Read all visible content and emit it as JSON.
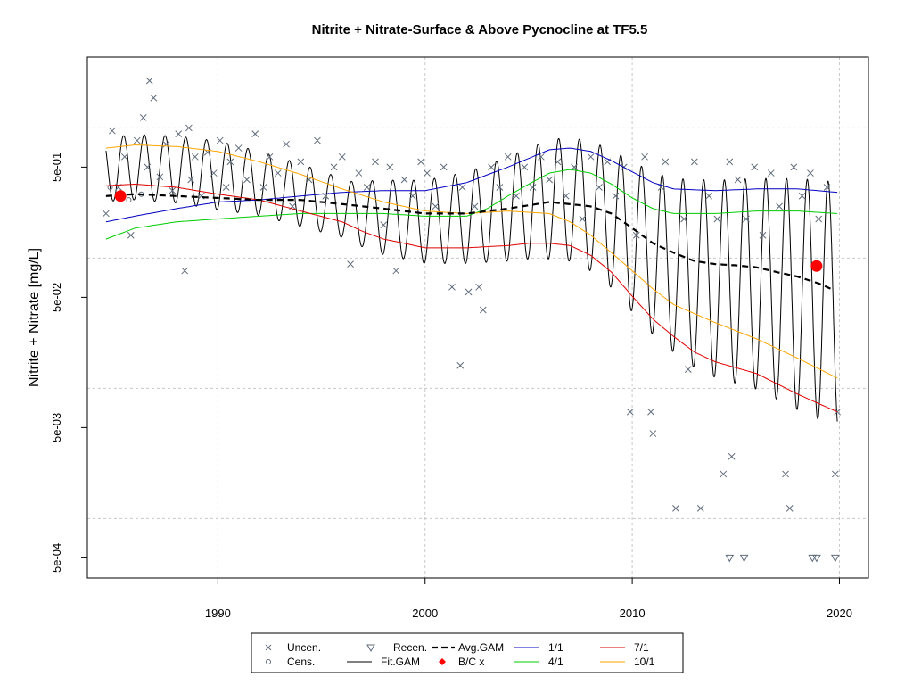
{
  "chart_data": {
    "type": "scatter",
    "title": "Nitrite + Nitrate-Surface & Above Pycnocline at TF5.5",
    "xlabel": "",
    "ylabel": "Nitrite + Nitrate [mg/L]",
    "y_scale": "log",
    "xlim": [
      1983.7,
      2021.4
    ],
    "ylim": [
      0.00035,
      3.5
    ],
    "x_ticks": [
      1990,
      2000,
      2010,
      2020
    ],
    "x_tick_labels": [
      "1990",
      "2000",
      "2010",
      "2020"
    ],
    "y_ticks": [
      0.0005,
      0.005,
      0.05,
      0.5
    ],
    "y_tick_labels": [
      "5e-04",
      "5e-03",
      "5e-02",
      "5e-01"
    ],
    "grid": true,
    "legend_placement": "bottom",
    "legend": [
      {
        "label": "Uncen.",
        "symbol": "x",
        "color": "#5f6b7a"
      },
      {
        "label": "Cens.",
        "symbol": "circle",
        "color": "#5f6b7a"
      },
      {
        "label": "Recen.",
        "symbol": "triangle-down",
        "color": "#5f6b7a"
      },
      {
        "label": "Fit.GAM",
        "symbol": "line",
        "color": "#000000"
      },
      {
        "label": "Avg.GAM",
        "symbol": "dashed-line",
        "color": "#000000"
      },
      {
        "label": "B/C x",
        "symbol": "diamond",
        "color": "#ff0000"
      },
      {
        "label": "1/1",
        "symbol": "line",
        "color": "#0000c0"
      },
      {
        "label": "4/1",
        "symbol": "line",
        "color": "#00cc00"
      },
      {
        "label": "7/1",
        "symbol": "line",
        "color": "#e00000"
      },
      {
        "label": "10/1",
        "symbol": "line",
        "color": "#ffa500"
      }
    ],
    "colors": {
      "points": "#5f6b7a",
      "fit_gam": "#000000",
      "avg_gam": "#000000",
      "baseline_marker": "#ff0000",
      "jan1": "#0000c0",
      "apr1": "#00cc00",
      "jul1": "#e00000",
      "oct1": "#ffa500",
      "grid": "#c8c8c8"
    },
    "series": [
      {
        "name": "Uncen.",
        "type": "scatter",
        "x": [
          1984.6,
          1984.9,
          1985.2,
          1985.5,
          1985.8,
          1986.1,
          1986.4,
          1986.6,
          1986.7,
          1986.9,
          1987.2,
          1987.5,
          1987.8,
          1988.1,
          1988.4,
          1988.6,
          1988.7,
          1988.9,
          1989.2,
          1989.5,
          1989.8,
          1990.1,
          1990.4,
          1990.6,
          1991.0,
          1991.4,
          1991.8,
          1992.2,
          1992.5,
          1992.9,
          1993.3,
          1993.6,
          1994.0,
          1994.4,
          1994.8,
          1995.2,
          1995.6,
          1996.0,
          1996.4,
          1996.8,
          1997.2,
          1997.6,
          1998.0,
          1998.3,
          1998.6,
          1999.0,
          1999.4,
          1999.8,
          2000.1,
          2000.5,
          2000.9,
          2001.3,
          2001.7,
          2001.8,
          2002.1,
          2002.4,
          2002.6,
          2002.8,
          2003.2,
          2003.6,
          2004.0,
          2004.4,
          2004.8,
          2005.2,
          2005.6,
          2006.0,
          2006.4,
          2006.8,
          2007.2,
          2007.6,
          2008.0,
          2008.4,
          2008.8,
          2009.2,
          2009.6,
          2009.9,
          2010.2,
          2010.6,
          2010.9,
          2011.0,
          2011.4,
          2011.6,
          2012.1,
          2012.5,
          2012.7,
          2013.0,
          2013.3,
          2013.7,
          2014.1,
          2014.4,
          2014.7,
          2014.8,
          2015.1,
          2015.5,
          2015.9,
          2016.3,
          2016.7,
          2017.1,
          2017.4,
          2017.6,
          2017.8,
          2018.2,
          2018.6,
          2019.0,
          2019.4,
          2019.8,
          2019.9
        ],
        "y": [
          0.22,
          0.95,
          0.35,
          0.6,
          0.15,
          0.8,
          1.2,
          0.5,
          2.3,
          1.7,
          0.42,
          0.75,
          0.33,
          0.9,
          0.08,
          1.0,
          0.4,
          0.6,
          0.3,
          0.65,
          0.45,
          0.8,
          0.35,
          0.55,
          0.7,
          0.4,
          0.9,
          0.35,
          0.6,
          0.45,
          0.75,
          0.25,
          0.55,
          0.4,
          0.8,
          0.3,
          0.5,
          0.6,
          0.09,
          0.45,
          0.35,
          0.55,
          0.18,
          0.5,
          0.08,
          0.4,
          0.3,
          0.55,
          0.45,
          0.25,
          0.5,
          0.06,
          0.015,
          0.35,
          0.055,
          0.25,
          0.06,
          0.04,
          0.5,
          0.35,
          0.6,
          0.3,
          0.5,
          0.35,
          0.6,
          0.4,
          0.55,
          0.3,
          0.5,
          0.2,
          0.6,
          0.35,
          0.55,
          0.3,
          0.5,
          0.0066,
          0.15,
          0.6,
          0.0066,
          0.0045,
          0.35,
          0.55,
          0.0012,
          0.2,
          0.014,
          0.55,
          0.0012,
          0.3,
          0.2,
          0.0022,
          0.55,
          0.003,
          0.4,
          0.2,
          0.5,
          0.15,
          0.45,
          0.25,
          0.0022,
          0.0012,
          0.5,
          0.3,
          0.45,
          0.2,
          0.35,
          0.0022,
          0.0066
        ]
      },
      {
        "name": "Cens.",
        "type": "scatter",
        "x": [
          1984.8,
          1985.7,
          1986.3
        ],
        "y": [
          0.35,
          0.28,
          0.31
        ]
      },
      {
        "name": "Recen.",
        "type": "scatter",
        "x": [
          2014.7,
          2015.4,
          2018.7,
          2018.9,
          2019.8
        ],
        "y": [
          0.0005,
          0.0005,
          0.0005,
          0.0005,
          0.0005
        ]
      },
      {
        "name": "Avg.GAM",
        "type": "line",
        "x": [
          1984.6,
          1986,
          1988,
          1990,
          1992,
          1994,
          1996,
          1998,
          2000,
          2002,
          2004,
          2006,
          2008,
          2009,
          2010,
          2011,
          2012,
          2013,
          2014,
          2015,
          2016,
          2017,
          2018,
          2019,
          2019.6
        ],
        "y": [
          0.3,
          0.31,
          0.3,
          0.29,
          0.28,
          0.28,
          0.26,
          0.24,
          0.22,
          0.22,
          0.24,
          0.27,
          0.25,
          0.22,
          0.17,
          0.13,
          0.11,
          0.095,
          0.09,
          0.088,
          0.085,
          0.078,
          0.072,
          0.064,
          0.058
        ]
      },
      {
        "name": "1/1",
        "type": "line",
        "x": [
          1984.6,
          1986,
          1988,
          1990,
          1992,
          1994,
          1996,
          1998,
          2000,
          2002,
          2004,
          2006,
          2007,
          2008,
          2009,
          2010,
          2011,
          2012,
          2014,
          2016,
          2018,
          2019.9
        ],
        "y": [
          0.19,
          0.21,
          0.24,
          0.27,
          0.28,
          0.3,
          0.32,
          0.33,
          0.33,
          0.38,
          0.5,
          0.68,
          0.7,
          0.66,
          0.56,
          0.46,
          0.38,
          0.34,
          0.33,
          0.34,
          0.34,
          0.32
        ]
      },
      {
        "name": "4/1",
        "type": "line",
        "x": [
          1984.6,
          1986,
          1988,
          1990,
          1992,
          1994,
          1996,
          1998,
          2000,
          2002,
          2003,
          2004,
          2005,
          2006,
          2007,
          2008,
          2009,
          2010,
          2011,
          2012,
          2014,
          2016,
          2018,
          2019.9
        ],
        "y": [
          0.14,
          0.17,
          0.19,
          0.2,
          0.21,
          0.22,
          0.22,
          0.22,
          0.21,
          0.21,
          0.24,
          0.3,
          0.37,
          0.45,
          0.48,
          0.45,
          0.37,
          0.29,
          0.24,
          0.22,
          0.22,
          0.23,
          0.23,
          0.22
        ]
      },
      {
        "name": "7/1",
        "type": "line",
        "x": [
          1984.6,
          1986,
          1988,
          1990,
          1992,
          1994,
          1996,
          1997,
          1998,
          1999,
          2000,
          2002,
          2004,
          2005,
          2006,
          2007,
          2008,
          2009,
          2010,
          2011,
          2012,
          2013,
          2014,
          2016,
          2018,
          2019.9
        ],
        "y": [
          0.36,
          0.37,
          0.35,
          0.31,
          0.28,
          0.23,
          0.19,
          0.16,
          0.14,
          0.13,
          0.12,
          0.12,
          0.125,
          0.13,
          0.13,
          0.125,
          0.105,
          0.078,
          0.051,
          0.034,
          0.025,
          0.019,
          0.016,
          0.013,
          0.009,
          0.0066
        ]
      },
      {
        "name": "10/1",
        "type": "line",
        "x": [
          1984.6,
          1986,
          1988,
          1990,
          1992,
          1994,
          1996,
          1998,
          2000,
          2002,
          2004,
          2006,
          2007,
          2008,
          2009,
          2010,
          2011,
          2012,
          2014,
          2016,
          2018,
          2019.9
        ],
        "y": [
          0.7,
          0.74,
          0.72,
          0.66,
          0.55,
          0.44,
          0.34,
          0.27,
          0.23,
          0.22,
          0.23,
          0.22,
          0.19,
          0.15,
          0.11,
          0.08,
          0.058,
          0.044,
          0.032,
          0.024,
          0.017,
          0.012
        ]
      },
      {
        "name": "Fit.GAM",
        "type": "line",
        "description_period_years": 1,
        "x_range": [
          1984.6,
          2019.9
        ]
      },
      {
        "name": "B/C x",
        "type": "scatter",
        "x": [
          1985.3,
          2018.9
        ],
        "y": [
          0.3,
          0.087
        ]
      }
    ]
  }
}
